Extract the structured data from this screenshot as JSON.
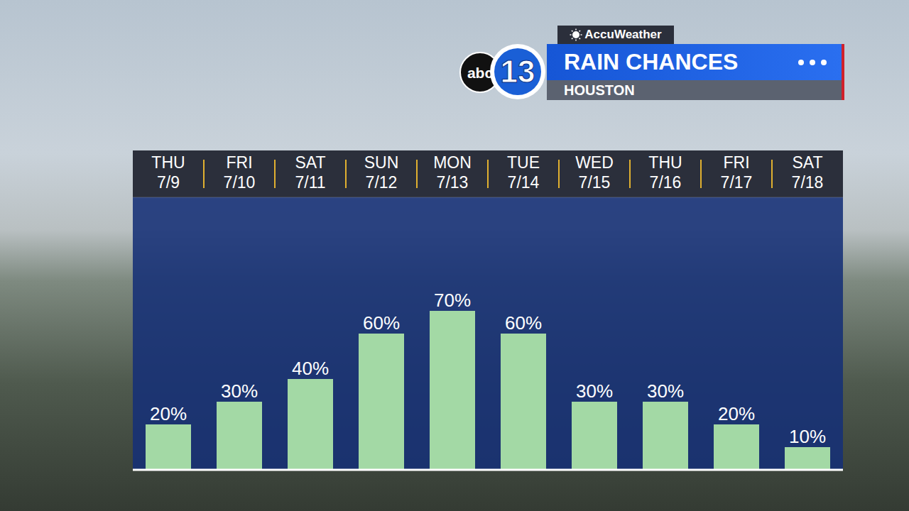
{
  "chart_data": {
    "type": "bar",
    "title": "RAIN CHANCES",
    "subtitle": "HOUSTON",
    "annotations": [
      "AccuWeather",
      "abc",
      "13"
    ],
    "categories": [
      "THU 7/9",
      "FRI 7/10",
      "SAT 7/11",
      "SUN 7/12",
      "MON 7/13",
      "TUE 7/14",
      "WED 7/15",
      "THU 7/16",
      "FRI 7/17",
      "SAT 7/18"
    ],
    "values": [
      20,
      30,
      40,
      60,
      70,
      60,
      30,
      30,
      20,
      10
    ],
    "value_labels": [
      "20%",
      "30%",
      "40%",
      "60%",
      "70%",
      "60%",
      "30%",
      "30%",
      "20%",
      "10%"
    ],
    "color": "#a3d9a5",
    "ylim": [
      0,
      120
    ],
    "yticks": [
      0,
      20,
      40,
      60,
      80,
      100,
      120
    ],
    "grid": true,
    "data_labels": true,
    "tick_labels": "x"
  }
}
